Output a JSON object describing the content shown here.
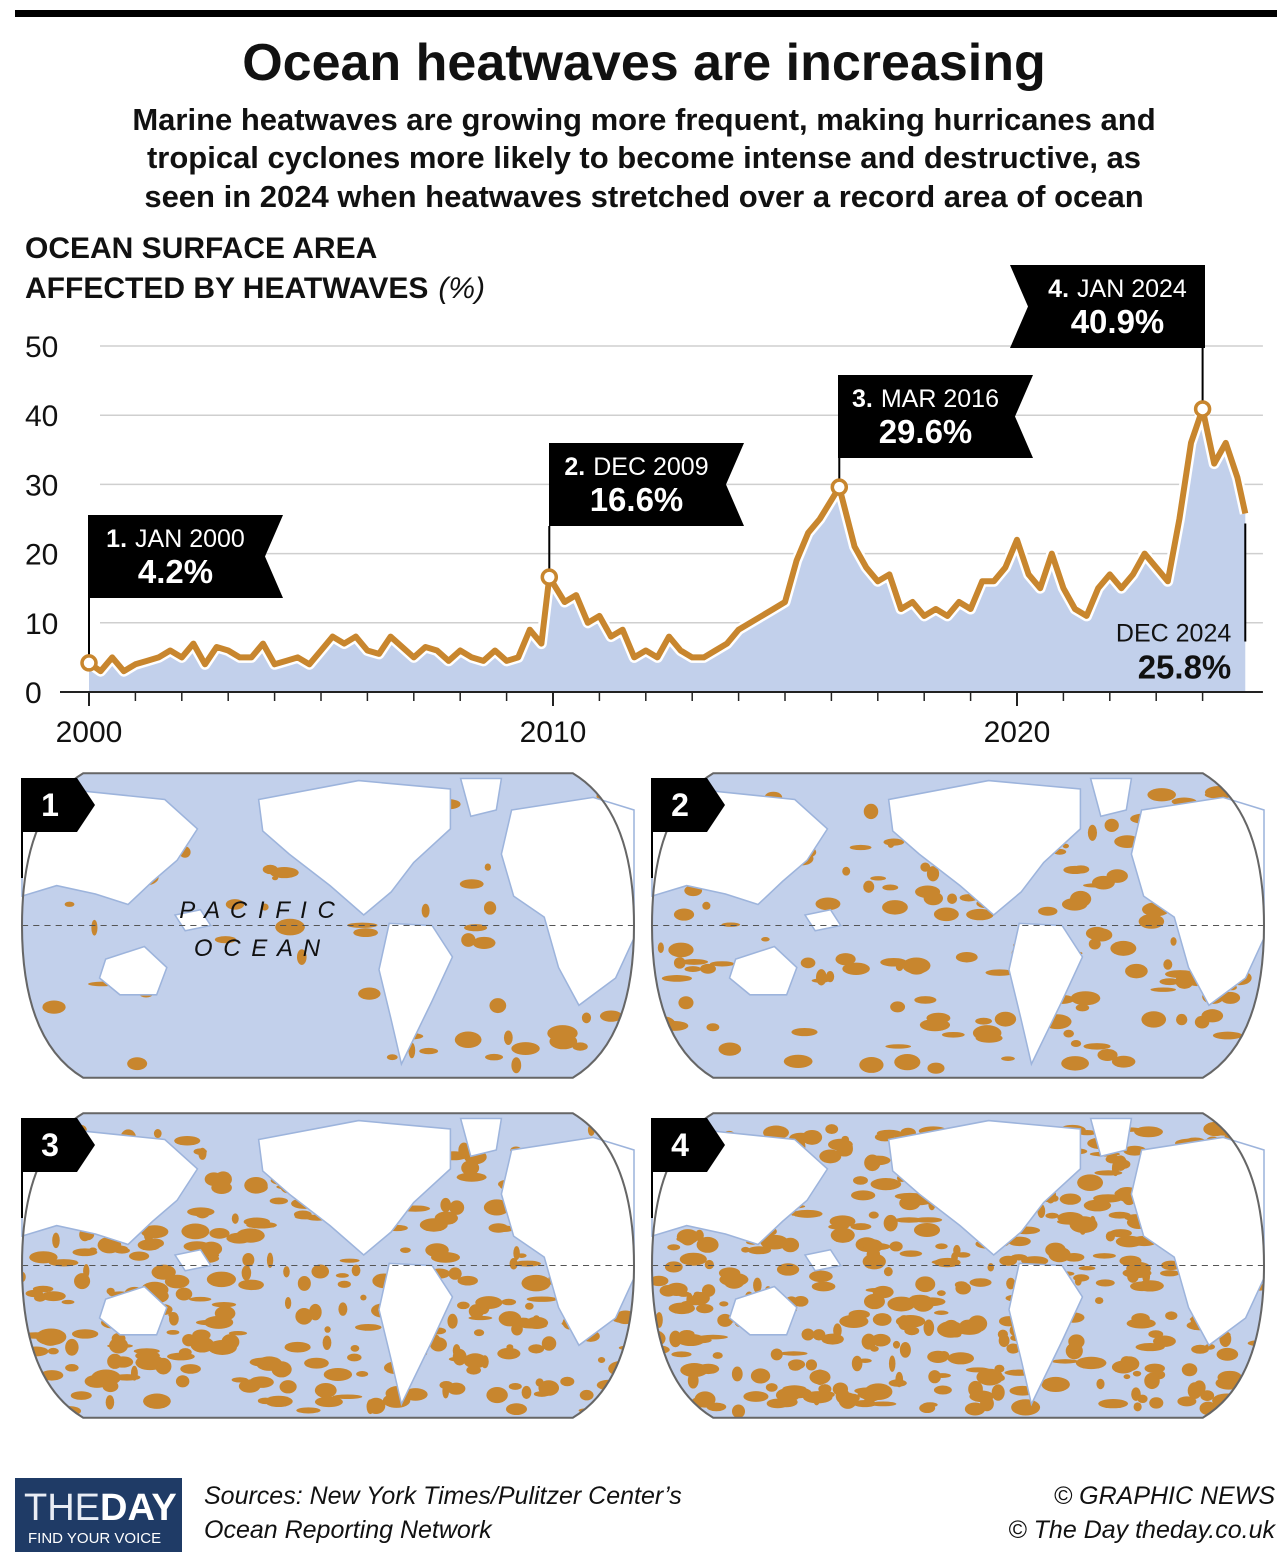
{
  "chart_data": {
    "type": "line",
    "title": "Ocean heatwaves are increasing",
    "subtitle": [
      "Marine heatwaves are growing more frequent, making hurricanes and",
      "tropical cyclones more likely to become intense and destructive, as",
      "seen in 2024 when heatwaves stretched over a record area of ocean"
    ],
    "y_label": [
      "OCEAN SURFACE AREA",
      "AFFECTED BY HEATWAVES"
    ],
    "y_unit": "(%)",
    "x": [
      2000.0,
      2000.25,
      2000.5,
      2000.75,
      2001.0,
      2001.25,
      2001.5,
      2001.75,
      2002.0,
      2002.25,
      2002.5,
      2002.75,
      2003.0,
      2003.25,
      2003.5,
      2003.75,
      2004.0,
      2004.25,
      2004.5,
      2004.75,
      2005.0,
      2005.25,
      2005.5,
      2005.75,
      2006.0,
      2006.25,
      2006.5,
      2006.75,
      2007.0,
      2007.25,
      2007.5,
      2007.75,
      2008.0,
      2008.25,
      2008.5,
      2008.75,
      2009.0,
      2009.25,
      2009.5,
      2009.75,
      2009.92,
      2010.25,
      2010.5,
      2010.75,
      2011.0,
      2011.25,
      2011.5,
      2011.75,
      2012.0,
      2012.25,
      2012.5,
      2012.75,
      2013.0,
      2013.25,
      2013.5,
      2013.75,
      2014.0,
      2014.25,
      2014.5,
      2014.75,
      2015.0,
      2015.25,
      2015.5,
      2015.75,
      2016.17,
      2016.5,
      2016.75,
      2017.0,
      2017.25,
      2017.5,
      2017.75,
      2018.0,
      2018.25,
      2018.5,
      2018.75,
      2019.0,
      2019.25,
      2019.5,
      2019.75,
      2020.0,
      2020.25,
      2020.5,
      2020.75,
      2021.0,
      2021.25,
      2021.5,
      2021.75,
      2022.0,
      2022.25,
      2022.5,
      2022.75,
      2023.0,
      2023.25,
      2023.5,
      2023.75,
      2024.0,
      2024.25,
      2024.5,
      2024.75,
      2024.92
    ],
    "values": [
      4.2,
      3,
      5,
      3,
      4,
      4.5,
      5,
      6,
      5,
      7,
      4,
      6.5,
      6,
      5,
      5,
      7,
      4,
      4.5,
      5,
      4,
      6,
      8,
      7,
      8,
      6,
      5.5,
      8,
      6.5,
      5,
      6.5,
      6,
      4.5,
      6,
      5,
      4.5,
      6,
      4.5,
      5,
      9,
      7,
      16.6,
      13,
      14,
      10,
      11,
      8,
      9,
      5,
      6,
      5,
      8,
      6,
      5,
      5,
      6,
      7,
      9,
      10,
      11,
      12,
      13,
      19,
      23,
      25,
      29.6,
      21,
      18,
      16,
      17,
      12,
      13,
      11,
      12,
      11,
      13,
      12,
      16,
      16,
      18,
      22,
      17,
      15,
      20,
      15,
      12,
      11,
      15,
      17,
      15,
      17,
      20,
      18,
      16,
      25,
      36,
      40.9,
      33,
      36,
      31,
      25.8
    ],
    "color": "#c8862e",
    "area_color": "#c2d0eb",
    "xlim": [
      2000,
      2025.3
    ],
    "ylim": [
      0,
      50
    ],
    "xticks": [
      2000,
      2010,
      2020
    ],
    "xticks_minor": [
      2001,
      2002,
      2003,
      2004,
      2005,
      2006,
      2007,
      2008,
      2009,
      2011,
      2012,
      2013,
      2014,
      2015,
      2016,
      2017,
      2018,
      2019,
      2021,
      2022,
      2023,
      2024
    ],
    "yticks": [
      0,
      10,
      20,
      30,
      40,
      50
    ],
    "grid": true,
    "annotations": [
      {
        "number": "1.",
        "date": "JAN 2000",
        "x": 2000.0,
        "value": 4.2,
        "value_label": "4.2%"
      },
      {
        "number": "2.",
        "date": "DEC 2009",
        "x": 2009.92,
        "value": 16.6,
        "value_label": "16.6%"
      },
      {
        "number": "3.",
        "date": "MAR 2016",
        "x": 2016.17,
        "value": 29.6,
        "value_label": "29.6%"
      },
      {
        "number": "4.",
        "date": "JAN 2024",
        "x": 2024.0,
        "value": 40.9,
        "value_label": "40.9%"
      },
      {
        "date": "DEC 2024",
        "x": 2024.92,
        "value": 25.8,
        "value_label": "25.8%"
      }
    ]
  },
  "maps": [
    {
      "label": "1"
    },
    {
      "label": "2"
    },
    {
      "label": "3"
    },
    {
      "label": "4"
    }
  ],
  "map_annotation": [
    "P A C I F I C",
    "O C E A N"
  ],
  "footer": {
    "logo": [
      "THE",
      "DAY"
    ],
    "logo_tagline": "FIND YOUR VOICE",
    "sources": [
      "Sources: New York Times/Pulitzer Center’s",
      "Ocean Reporting Network"
    ],
    "credits": [
      "© GRAPHIC NEWS",
      "© The Day   theday.co.uk"
    ]
  }
}
